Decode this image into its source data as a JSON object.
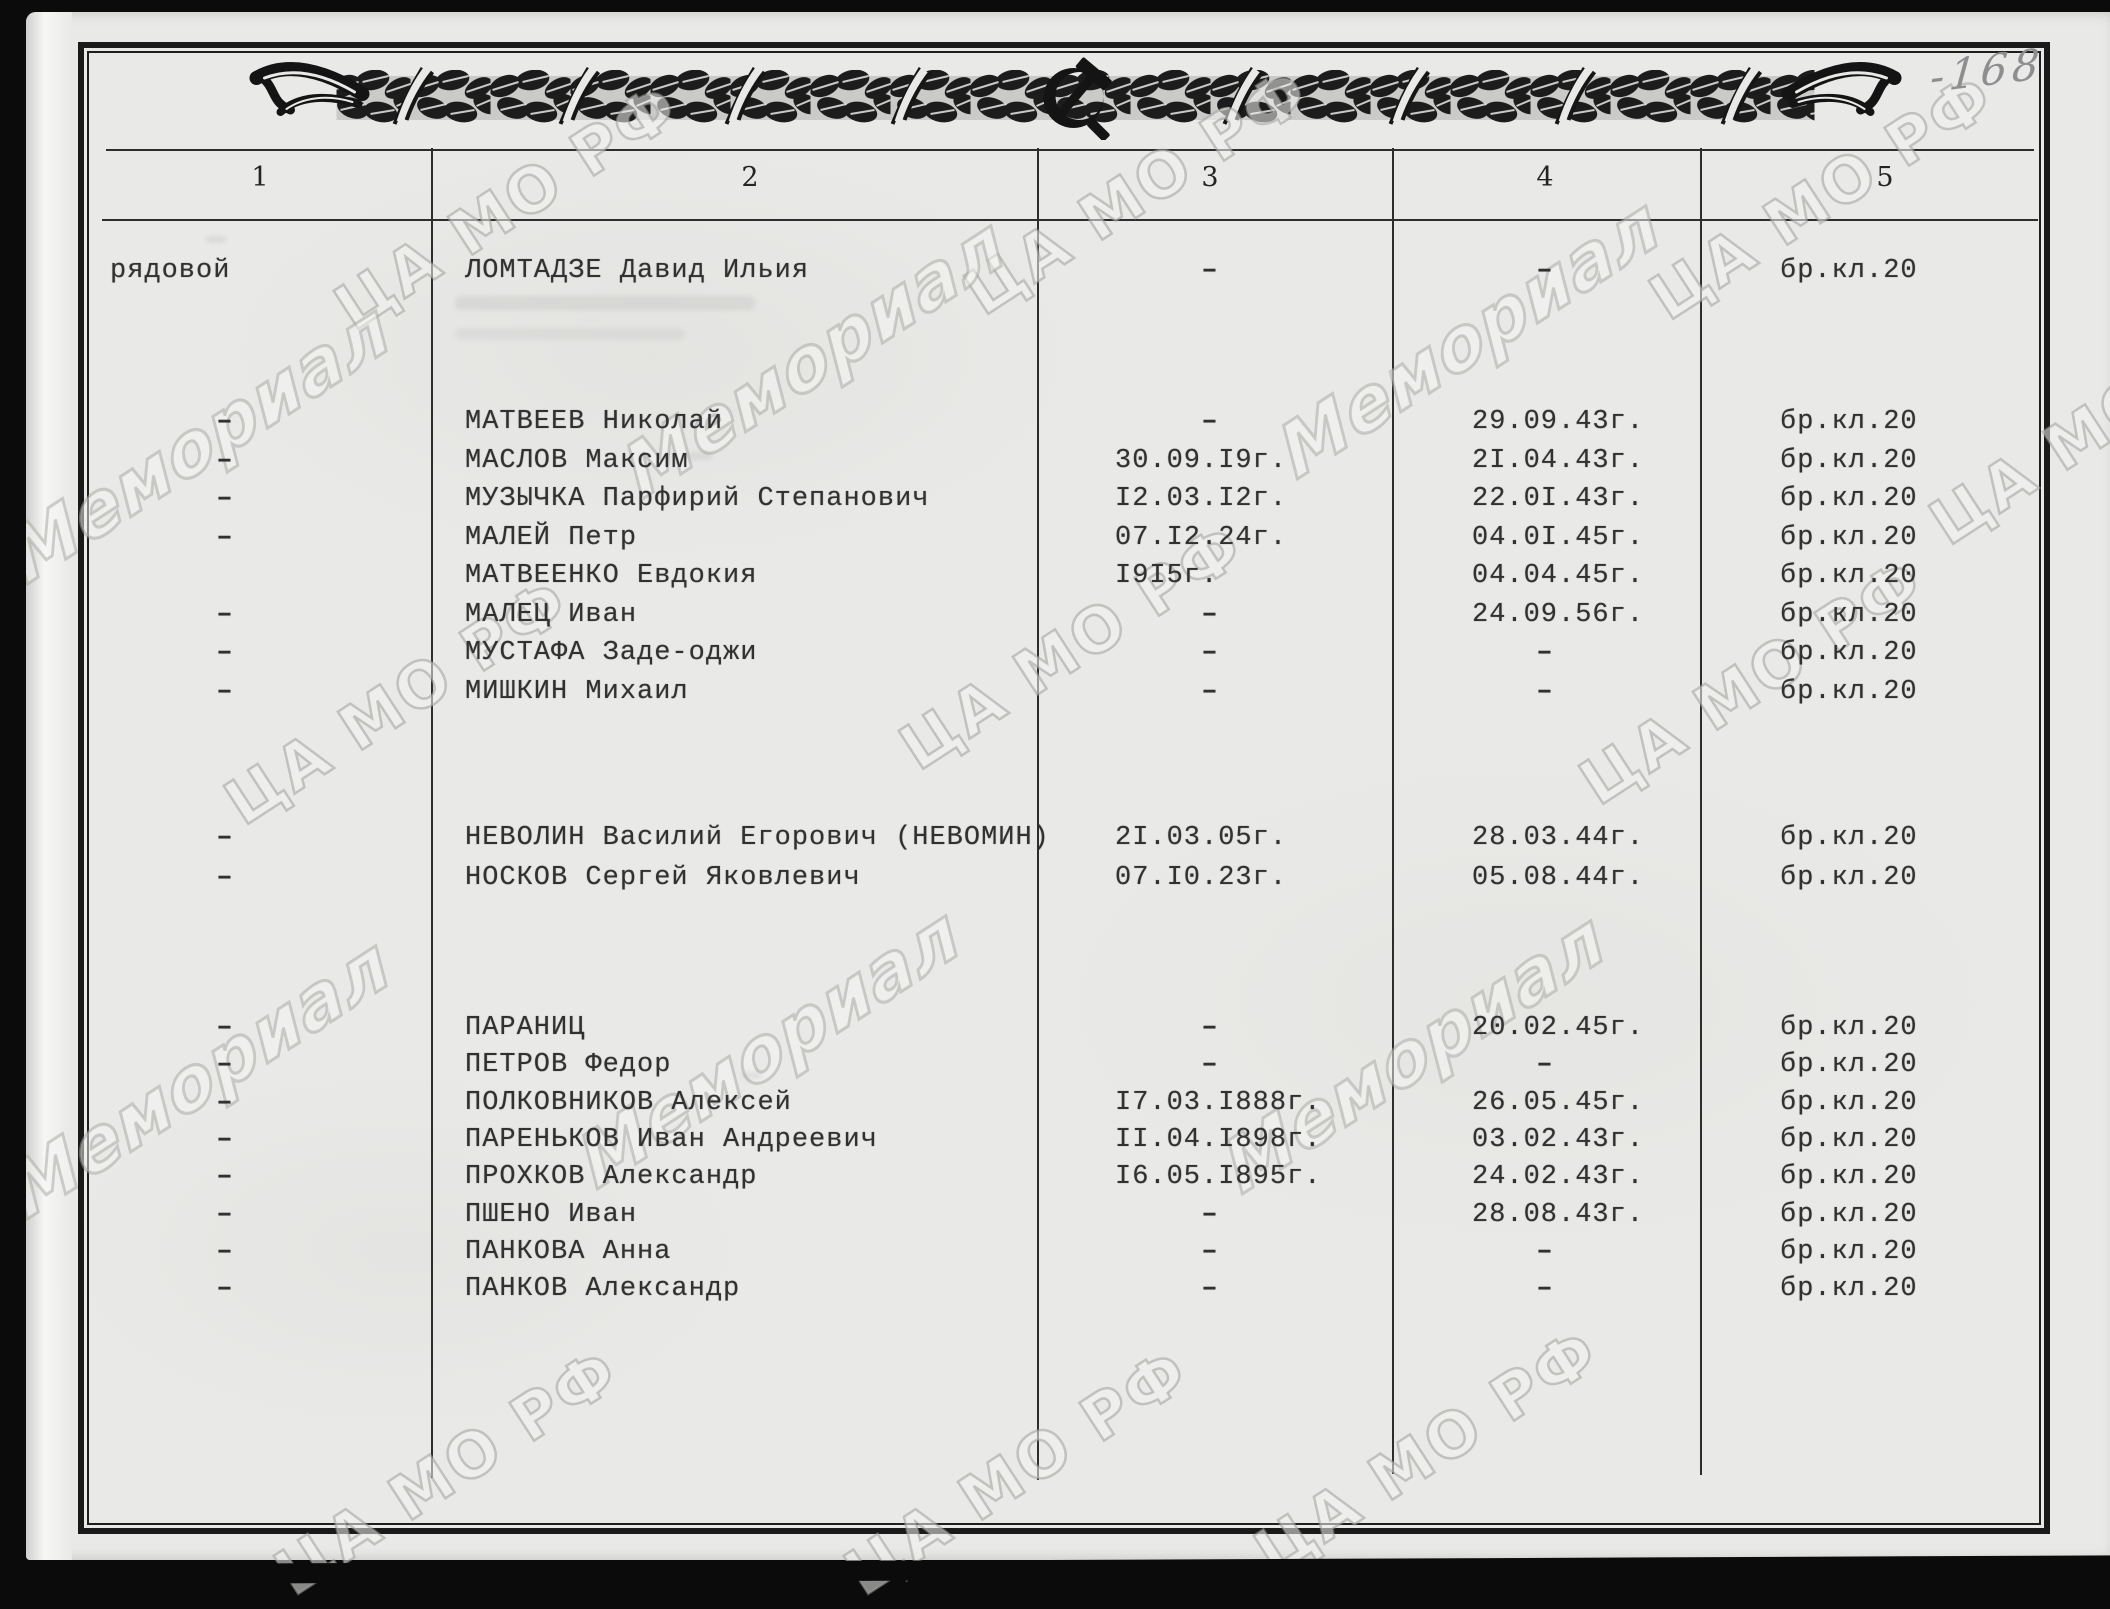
{
  "page_number": "-168",
  "watermarks": {
    "archive": "ЦА МО РФ",
    "memorial": "Мемориал"
  },
  "table": {
    "headers": [
      "1",
      "2",
      "3",
      "4",
      "5"
    ],
    "groups": [
      {
        "rows": [
          {
            "rank": "рядовой",
            "name": "ЛОМТАДЗЕ Давид Ильия",
            "birth": "–",
            "death": "–",
            "grave": "бр.кл.20"
          }
        ]
      },
      {
        "rows": [
          {
            "rank": "–",
            "name": "МАТВЕЕВ Николай",
            "birth": "–",
            "death": "29.09.43г.",
            "grave": "бр.кл.20"
          },
          {
            "rank": "–",
            "name": "МАСЛОВ Максим",
            "birth": "30.09.I9г.",
            "death": "2I.04.43г.",
            "grave": "бр.кл.20"
          },
          {
            "rank": "–",
            "name": "МУЗЫЧКА Парфирий Степанович",
            "birth": "I2.03.I2г.",
            "death": "22.0I.43г.",
            "grave": "бр.кл.20"
          },
          {
            "rank": "–",
            "name": "МАЛЕЙ Петр",
            "birth": "07.I2.24г.",
            "death": "04.0I.45г.",
            "grave": "бр.кл.20"
          },
          {
            "rank": "",
            "name": "МАТВЕЕНКО Евдокия",
            "birth": "I9I5г.",
            "death": "04.04.45г.",
            "grave": "бр.кл.20"
          },
          {
            "rank": "–",
            "name": "МАЛЕЦ Иван",
            "birth": "–",
            "death": "24.09.56г.",
            "grave": "бр.кл.20"
          },
          {
            "rank": "–",
            "name": "МУСТАФА Заде-оджи",
            "birth": "–",
            "death": "–",
            "grave": "бр.кл.20"
          },
          {
            "rank": "–",
            "name": "МИШКИН Михаил",
            "birth": "–",
            "death": "–",
            "grave": "бр.кл.20"
          }
        ]
      },
      {
        "rows": [
          {
            "rank": "–",
            "name": "НЕВОЛИН Василий Егорович (НЕВОМИН)",
            "birth": "2I.03.05г.",
            "death": "28.03.44г.",
            "grave": "бр.кл.20"
          },
          {
            "rank": "–",
            "name": "НОСКОВ Сергей Яковлевич",
            "birth": "07.I0.23г.",
            "death": "05.08.44г.",
            "grave": "бр.кл.20"
          }
        ]
      },
      {
        "rows": [
          {
            "rank": "–",
            "name": "ПАРАНИЦ",
            "birth": "–",
            "death": "20.02.45г.",
            "grave": "бр.кл.20"
          },
          {
            "rank": "–",
            "name": "ПЕТРОВ Федор",
            "birth": "–",
            "death": "–",
            "grave": "бр.кл.20"
          },
          {
            "rank": "–",
            "name": "ПОЛКОВНИКОВ Алексей",
            "birth": "I7.03.I888г.",
            "death": "26.05.45г.",
            "grave": "бр.кл.20"
          },
          {
            "rank": "–",
            "name": "ПАРЕНЬКОВ Иван Андреевич",
            "birth": "II.04.I898г.",
            "death": "03.02.43г.",
            "grave": "бр.кл.20"
          },
          {
            "rank": "–",
            "name": "ПРОХКОВ Александр",
            "birth": "I6.05.I895г.",
            "death": "24.02.43г.",
            "grave": "бр.кл.20"
          },
          {
            "rank": "–",
            "name": "ПШЕНО Иван",
            "birth": "–",
            "death": "28.08.43г.",
            "grave": "бр.кл.20"
          },
          {
            "rank": "–",
            "name": "ПАНКОВА Анна",
            "birth": "–",
            "death": "–",
            "grave": "бр.кл.20"
          },
          {
            "rank": "–",
            "name": "ПАНКОВ Александр",
            "birth": "–",
            "death": "–",
            "grave": "бр.кл.20"
          }
        ]
      }
    ]
  }
}
